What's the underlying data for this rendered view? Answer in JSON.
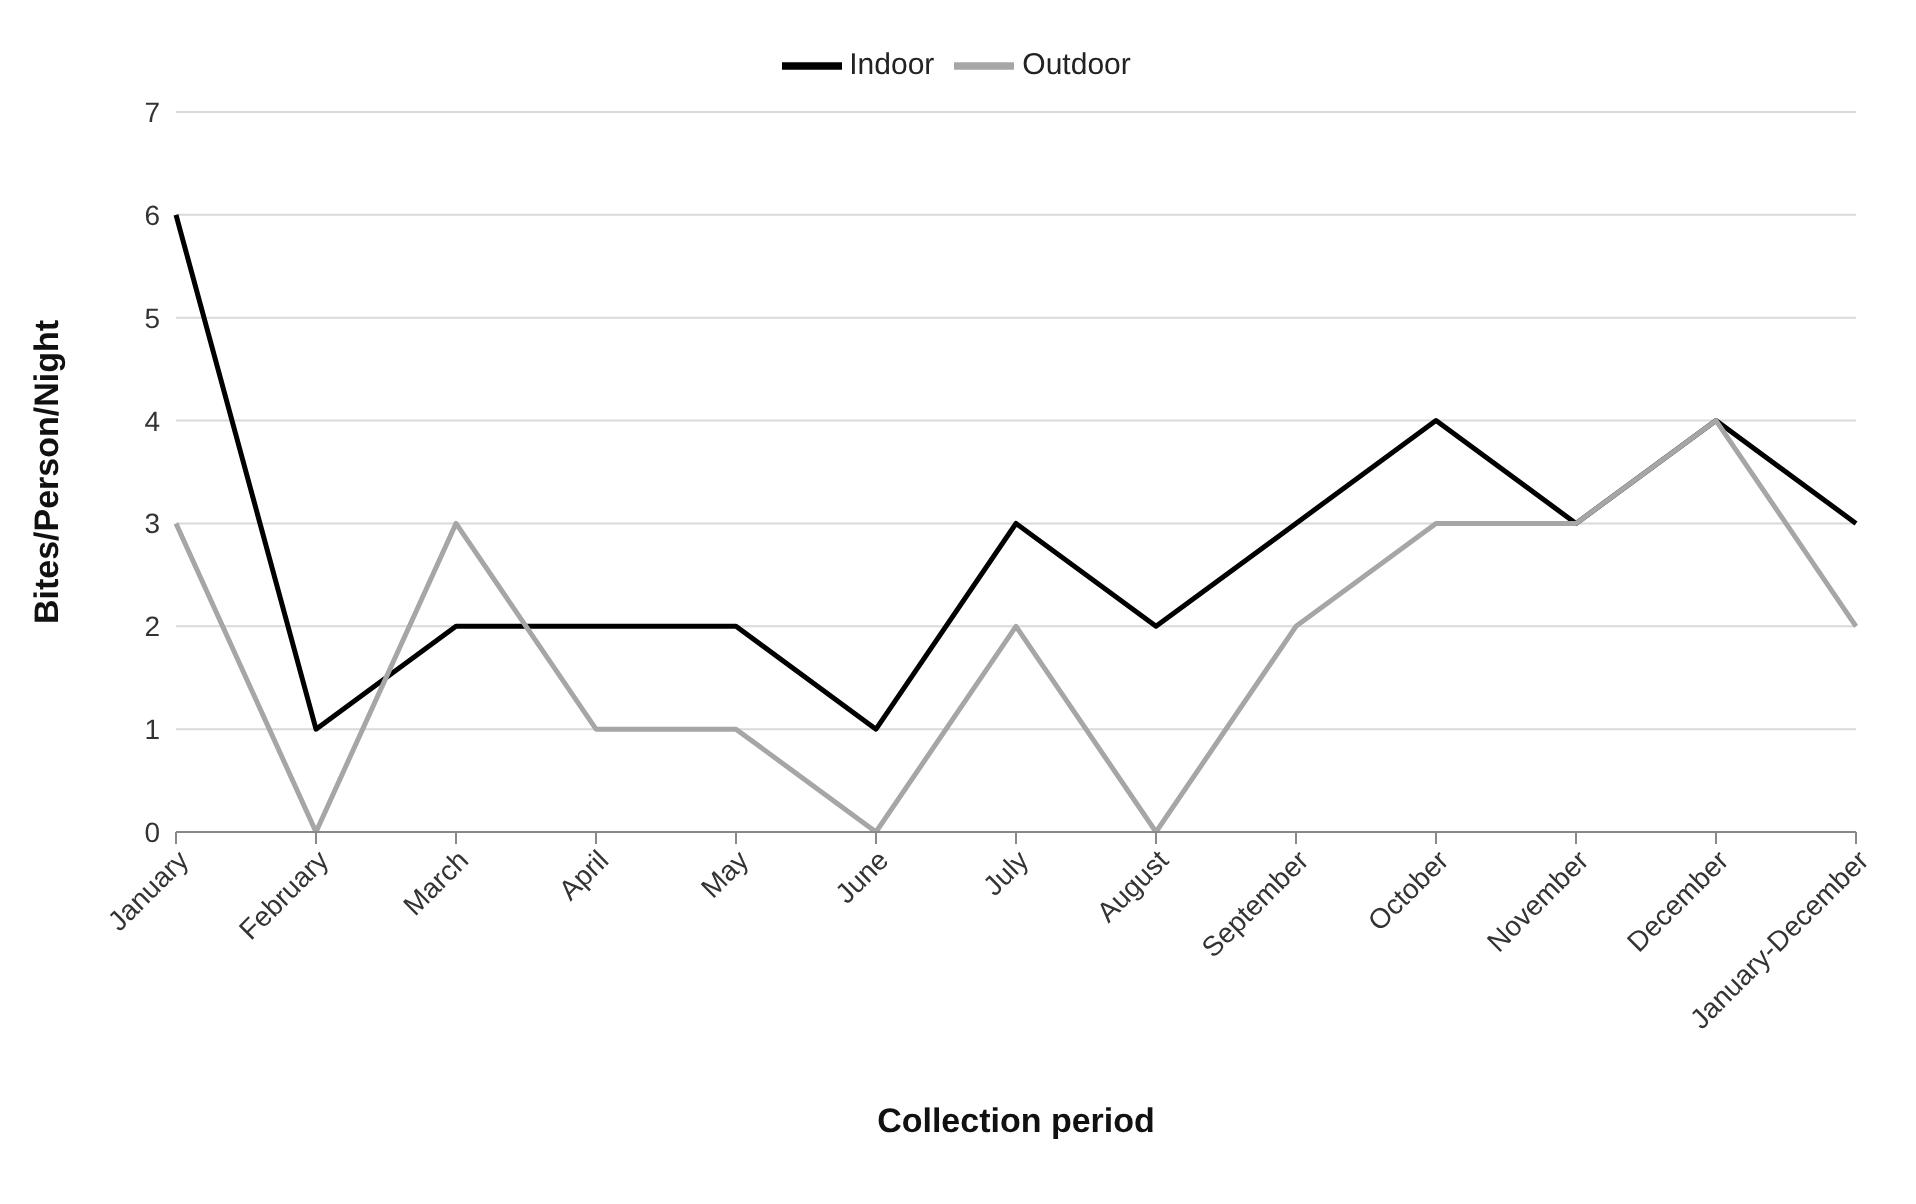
{
  "chart_data": {
    "type": "line",
    "xlabel": "Collection period",
    "ylabel": "Bites/Person/Night",
    "categories": [
      "January",
      "February",
      "March",
      "April",
      "May",
      "June",
      "July",
      "August",
      "September",
      "October",
      "November",
      "December",
      "January-December"
    ],
    "series": [
      {
        "name": "Indoor",
        "color": "#000000",
        "values": [
          6,
          1,
          2,
          2,
          2,
          1,
          3,
          2,
          3,
          4,
          3,
          4,
          3
        ]
      },
      {
        "name": "Outdoor",
        "color": "#a6a6a6",
        "values": [
          3,
          0,
          3,
          1,
          1,
          0,
          2,
          0,
          2,
          3,
          3,
          4,
          2
        ]
      }
    ],
    "ylim": [
      0,
      7
    ],
    "yticks": [
      0,
      1,
      2,
      3,
      4,
      5,
      6,
      7
    ],
    "grid": "y",
    "legend": "top",
    "marker": "none",
    "line_style": "solid"
  }
}
